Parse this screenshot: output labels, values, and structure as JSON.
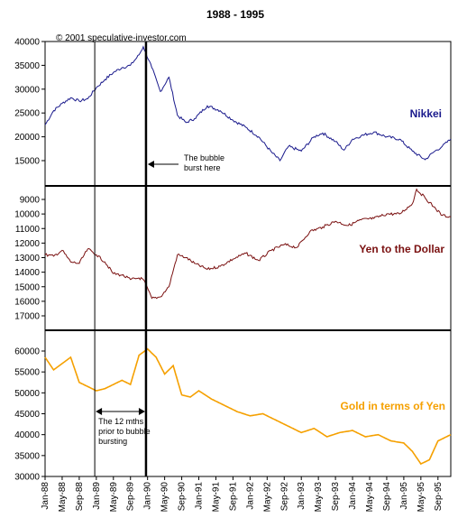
{
  "chart_data": {
    "type": "line",
    "title": "1988 - 1995",
    "copyright": "© 2001 speculative-investor.com",
    "x_tick_labels": [
      "Jan-88",
      "May-88",
      "Sep-88",
      "Jan-89",
      "May-89",
      "Sep-89",
      "Jan-90",
      "May-90",
      "Sep-90",
      "Jan-91",
      "May-91",
      "Sep-91",
      "Jan-92",
      "May-92",
      "Sep-92",
      "Jan-93",
      "May-93",
      "Sep-93",
      "Jan-94",
      "May-94",
      "Sep-94",
      "Jan-95",
      "May-95",
      "Sep-95"
    ],
    "x_start": "1988-01",
    "x_end": "1995-12",
    "colors": {
      "nikkei": "#1a1a8c",
      "yen": "#7a1010",
      "gold": "#f5a000"
    },
    "panels": [
      {
        "name": "Nikkei",
        "label": "Nikkei",
        "y_axis": "linear",
        "ylim": [
          10000,
          40000
        ],
        "yticks": [
          15000,
          20000,
          25000,
          30000,
          35000,
          40000
        ],
        "ytick_labels": [
          "15000",
          "20000",
          "25000",
          "30000",
          "35000",
          "40000"
        ],
        "series": {
          "x": [
            "1988-01",
            "1988-03",
            "1988-05",
            "1988-07",
            "1988-09",
            "1988-11",
            "1989-01",
            "1989-03",
            "1989-05",
            "1989-07",
            "1989-09",
            "1989-11",
            "1989-12",
            "1990-02",
            "1990-04",
            "1990-06",
            "1990-08",
            "1990-10",
            "1990-12",
            "1991-03",
            "1991-06",
            "1991-09",
            "1991-12",
            "1992-03",
            "1992-06",
            "1992-08",
            "1992-10",
            "1993-01",
            "1993-04",
            "1993-06",
            "1993-09",
            "1993-11",
            "1994-01",
            "1994-03",
            "1994-06",
            "1994-09",
            "1994-12",
            "1995-03",
            "1995-06",
            "1995-08",
            "1995-10",
            "1995-12"
          ],
          "values": [
            22500,
            25500,
            27000,
            28200,
            27500,
            28000,
            30300,
            32000,
            33500,
            34500,
            35000,
            37200,
            38900,
            34500,
            29500,
            32500,
            24500,
            23000,
            23800,
            26500,
            25500,
            23500,
            22000,
            20000,
            16800,
            15000,
            18000,
            17000,
            20000,
            20800,
            19000,
            17200,
            19500,
            20200,
            21000,
            20000,
            19500,
            17000,
            15200,
            16800,
            18000,
            19500
          ]
        }
      },
      {
        "name": "Yen to the Dollar",
        "label": "Yen to the Dollar",
        "y_axis": "inverted",
        "ylim": [
          18000,
          8000
        ],
        "yticks": [
          9000,
          10000,
          11000,
          12000,
          13000,
          14000,
          15000,
          16000,
          17000
        ],
        "ytick_labels": [
          "9000",
          "10000",
          "11000",
          "12000",
          "13000",
          "14000",
          "15000",
          "16000",
          "17000"
        ],
        "series": {
          "x": [
            "1988-01",
            "1988-03",
            "1988-05",
            "1988-07",
            "1988-09",
            "1988-11",
            "1989-01",
            "1989-03",
            "1989-05",
            "1989-07",
            "1989-09",
            "1989-11",
            "1989-12",
            "1990-02",
            "1990-04",
            "1990-06",
            "1990-08",
            "1990-10",
            "1990-12",
            "1991-03",
            "1991-06",
            "1991-09",
            "1991-12",
            "1992-03",
            "1992-06",
            "1992-09",
            "1992-12",
            "1993-03",
            "1993-06",
            "1993-09",
            "1993-12",
            "1994-03",
            "1994-06",
            "1994-09",
            "1994-12",
            "1995-03",
            "1995-04",
            "1995-06",
            "1995-08",
            "1995-10",
            "1995-12"
          ],
          "values": [
            12800,
            12900,
            12500,
            13300,
            13400,
            12400,
            12800,
            13300,
            14100,
            14200,
            14500,
            14400,
            14500,
            15800,
            15700,
            15000,
            12800,
            13000,
            13400,
            13800,
            13600,
            13100,
            12700,
            13200,
            12500,
            12100,
            12300,
            11200,
            10900,
            10500,
            10800,
            10400,
            10300,
            10000,
            10000,
            9300,
            8300,
            8900,
            9500,
            10100,
            10200
          ]
        }
      },
      {
        "name": "Gold in terms of Yen",
        "label": "Gold in terms of Yen",
        "y_axis": "linear",
        "ylim": [
          30000,
          60000
        ],
        "yticks": [
          30000,
          35000,
          40000,
          45000,
          50000,
          55000,
          60000
        ],
        "ytick_labels": [
          "30000",
          "35000",
          "40000",
          "45000",
          "50000",
          "55000",
          "60000"
        ],
        "series": {
          "x": [
            "1988-01",
            "1988-03",
            "1988-05",
            "1988-07",
            "1988-09",
            "1988-11",
            "1989-01",
            "1989-03",
            "1989-05",
            "1989-07",
            "1989-09",
            "1989-11",
            "1990-01",
            "1990-03",
            "1990-05",
            "1990-07",
            "1990-09",
            "1990-11",
            "1991-01",
            "1991-04",
            "1991-07",
            "1991-10",
            "1992-01",
            "1992-04",
            "1992-07",
            "1992-10",
            "1993-01",
            "1993-04",
            "1993-07",
            "1993-10",
            "1994-01",
            "1994-04",
            "1994-07",
            "1994-10",
            "1995-01",
            "1995-03",
            "1995-05",
            "1995-07",
            "1995-09",
            "1995-12"
          ],
          "values": [
            58500,
            55500,
            57000,
            58500,
            52500,
            51500,
            50500,
            51000,
            52000,
            53000,
            52000,
            59000,
            60500,
            58500,
            54500,
            56500,
            49500,
            49000,
            50500,
            48500,
            47000,
            45500,
            44500,
            45000,
            43500,
            42000,
            40500,
            41500,
            39500,
            40500,
            41000,
            39500,
            40000,
            38500,
            38000,
            36000,
            33000,
            34000,
            38500,
            40000
          ]
        }
      }
    ],
    "annotations": [
      {
        "id": "bubble",
        "lines": [
          "The bubble",
          "burst here"
        ]
      },
      {
        "id": "twelve",
        "lines": [
          "The 12 mths",
          "prior to bubble",
          "bursting"
        ]
      }
    ]
  }
}
